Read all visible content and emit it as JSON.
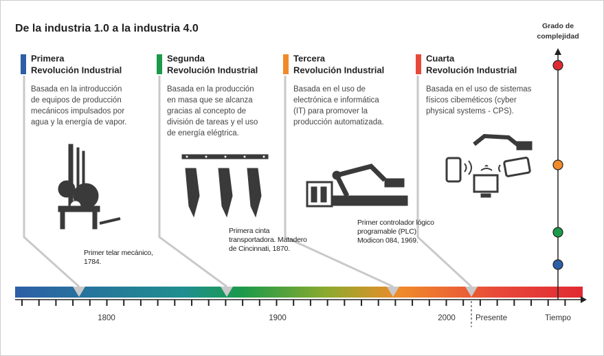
{
  "title": "De la industria 1.0 a la industria 4.0",
  "complexity_axis": {
    "label": [
      "Grado de",
      "complejidad"
    ]
  },
  "revolutions": [
    {
      "heading": [
        "Primera",
        "Revolución Industrial"
      ],
      "description": [
        "Basada en la introducción",
        "de equipos de producción",
        "mecánicos impulsados por",
        "agua y la energía de vapor."
      ],
      "milestone": [
        "Primer telar mecánico,",
        "1784."
      ]
    },
    {
      "heading": [
        "Segunda",
        "Revolución Industrial"
      ],
      "description": [
        "Basada en la producción",
        "en masa que se alcanza",
        "gracias al concepto de",
        "división de tareas y el uso",
        "de energía elégtrica."
      ],
      "milestone": [
        "Primera cinta",
        "transportadora. Matadero",
        "de Cincinnati, 1870."
      ]
    },
    {
      "heading": [
        "Tercera",
        "Revolución Industrial"
      ],
      "description": [
        "Basada en el uso de",
        "electrónica e informática",
        "(IT) para promover la",
        "producción automatizada."
      ],
      "milestone": [
        "Primer controlador lógico",
        "programable (PLC)",
        "Modicon 084, 1969."
      ]
    },
    {
      "heading": [
        "Cuarta",
        "Revolución Industrial"
      ],
      "description": [
        "Basada en el uso de sistemas",
        "físicos cibeméticos (cyber",
        "physical systems - CPS)."
      ]
    }
  ],
  "timeline": {
    "years": [
      "1800",
      "1900",
      "2000"
    ],
    "present": "Presente",
    "axis_label": "Tiempo"
  }
}
